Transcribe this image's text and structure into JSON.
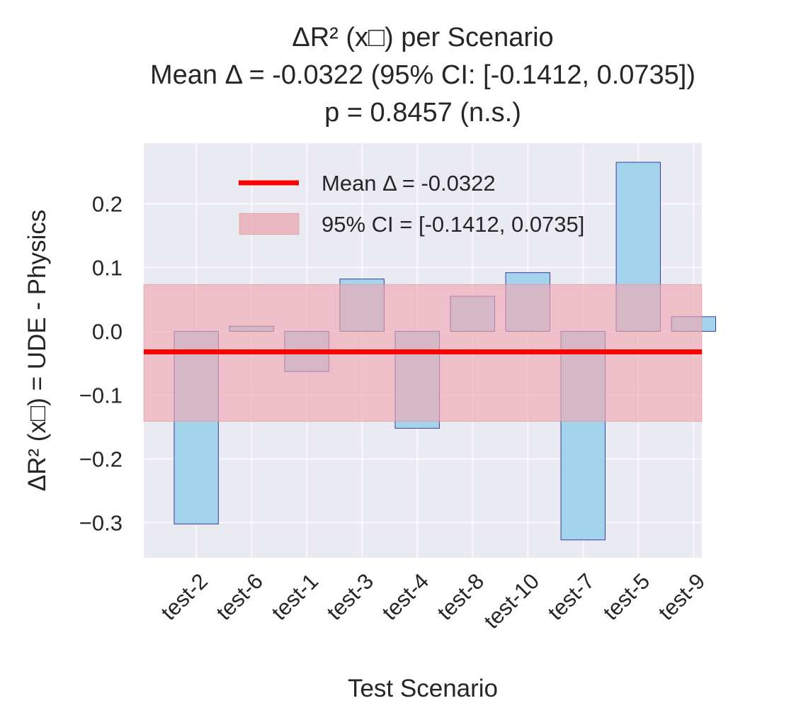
{
  "chart_data": {
    "type": "bar",
    "title_lines": [
      "ΔR² (x□) per Scenario",
      "Mean Δ = -0.0322 (95% CI: [-0.1412, 0.0735])",
      "p = 0.8457 (n.s.)"
    ],
    "xlabel": "Test Scenario",
    "ylabel": "ΔR² (x□) = UDE - Physics",
    "categories": [
      "test-2",
      "test-6",
      "test-1",
      "test-3",
      "test-4",
      "test-8",
      "test-10",
      "test-7",
      "test-5",
      "test-9"
    ],
    "values": [
      -0.302,
      0.008,
      -0.063,
      0.082,
      -0.152,
      0.055,
      0.092,
      -0.327,
      0.265,
      0.023
    ],
    "ylim": [
      -0.355,
      0.295
    ],
    "yticks": [
      -0.3,
      -0.2,
      -0.1,
      0.0,
      0.1,
      0.2
    ],
    "ytick_labels": [
      "−0.3",
      "−0.2",
      "−0.1",
      "0.0",
      "0.1",
      "0.2"
    ],
    "mean": -0.0322,
    "ci": [
      -0.1412,
      0.0735
    ],
    "legend": {
      "placement": "upper center",
      "items": [
        {
          "label": "Mean Δ = -0.0322",
          "kind": "line",
          "color": "#ff0000"
        },
        {
          "label": "95% CI = [-0.1412, 0.0735]",
          "kind": "patch",
          "color": "#e8a1aa"
        }
      ]
    },
    "grid": true,
    "colors": {
      "bar_fill": "#a3d4ec",
      "bar_edge": "#3a3aa0",
      "mean_line": "#ff0000",
      "ci_fill": "#f0a8b0",
      "background": "#eaeaf2",
      "grid": "#ffffff"
    }
  }
}
